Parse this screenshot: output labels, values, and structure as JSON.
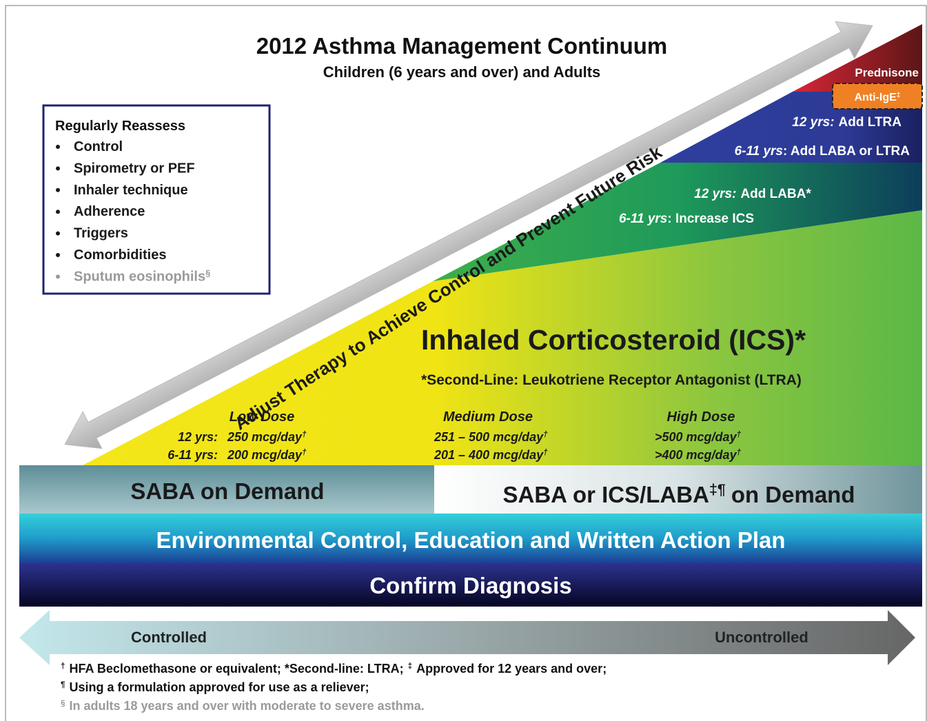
{
  "header": {
    "title": "2012 Asthma Management Continuum",
    "subtitle": "Children (6 years and over) and Adults"
  },
  "reassess": {
    "heading": "Regularly Reassess",
    "items": [
      "Control",
      "Spirometry or PEF",
      "Inhaler technique",
      "Adherence",
      "Triggers",
      "Comorbidities",
      "Sputum eosinophils"
    ],
    "last_item_mark": "§"
  },
  "arrow_label": "Adjust Therapy to Achieve Control and Prevent Future Risk",
  "steps": {
    "prednisone": "Prednisone",
    "anti_ige": {
      "text": "Anti-IgE",
      "mark": "‡"
    },
    "add_ltra": {
      "age": "12 yrs:",
      "text": "Add LTRA"
    },
    "add_laba_or_ltra": {
      "age": "6-11 yrs",
      "text": ": Add LABA or LTRA"
    },
    "add_laba": {
      "age": "12 yrs:",
      "text": "Add LABA*"
    },
    "increase_ics": {
      "age": "6-11 yrs",
      "text": ": Increase ICS"
    }
  },
  "ics": {
    "title": "Inhaled Corticosteroid (ICS)*",
    "second_line": "*Second-Line: Leukotriene Receptor Antagonist (LTRA)"
  },
  "doses": [
    {
      "label": "Low Dose",
      "rows": [
        {
          "age": "12 yrs:",
          "amount": "250 mcg/day",
          "mark": "†"
        },
        {
          "age": "6-11 yrs:",
          "amount": "200 mcg/day",
          "mark": "†"
        }
      ]
    },
    {
      "label": "Medium Dose",
      "rows": [
        {
          "amount": "251 – 500 mcg/day",
          "mark": "†"
        },
        {
          "amount": "201 – 400 mcg/day",
          "mark": "†"
        }
      ]
    },
    {
      "label": "High Dose",
      "rows": [
        {
          "amount": ">500 mcg/day",
          "mark": "†"
        },
        {
          "amount": ">400 mcg/day",
          "mark": "†"
        }
      ]
    }
  ],
  "saba": {
    "left": "SABA on Demand",
    "right": {
      "before": "SABA or ICS/LABA",
      "mark": "‡¶",
      "after": "on Demand"
    }
  },
  "environmental": "Environmental Control, Education and Written Action Plan",
  "diagnosis": "Confirm Diagnosis",
  "scale": {
    "left": "Controlled",
    "right": "Uncontrolled"
  },
  "footnotes": [
    [
      "†",
      "HFA Beclomethasone or equivalent; *Second-line: LTRA;",
      "‡",
      "Approved for 12 years and over;"
    ],
    [
      "¶",
      "Using a formulation approved for use as a reliever;"
    ],
    [
      "§",
      "In adults 18 years and over with moderate to severe asthma."
    ]
  ]
}
